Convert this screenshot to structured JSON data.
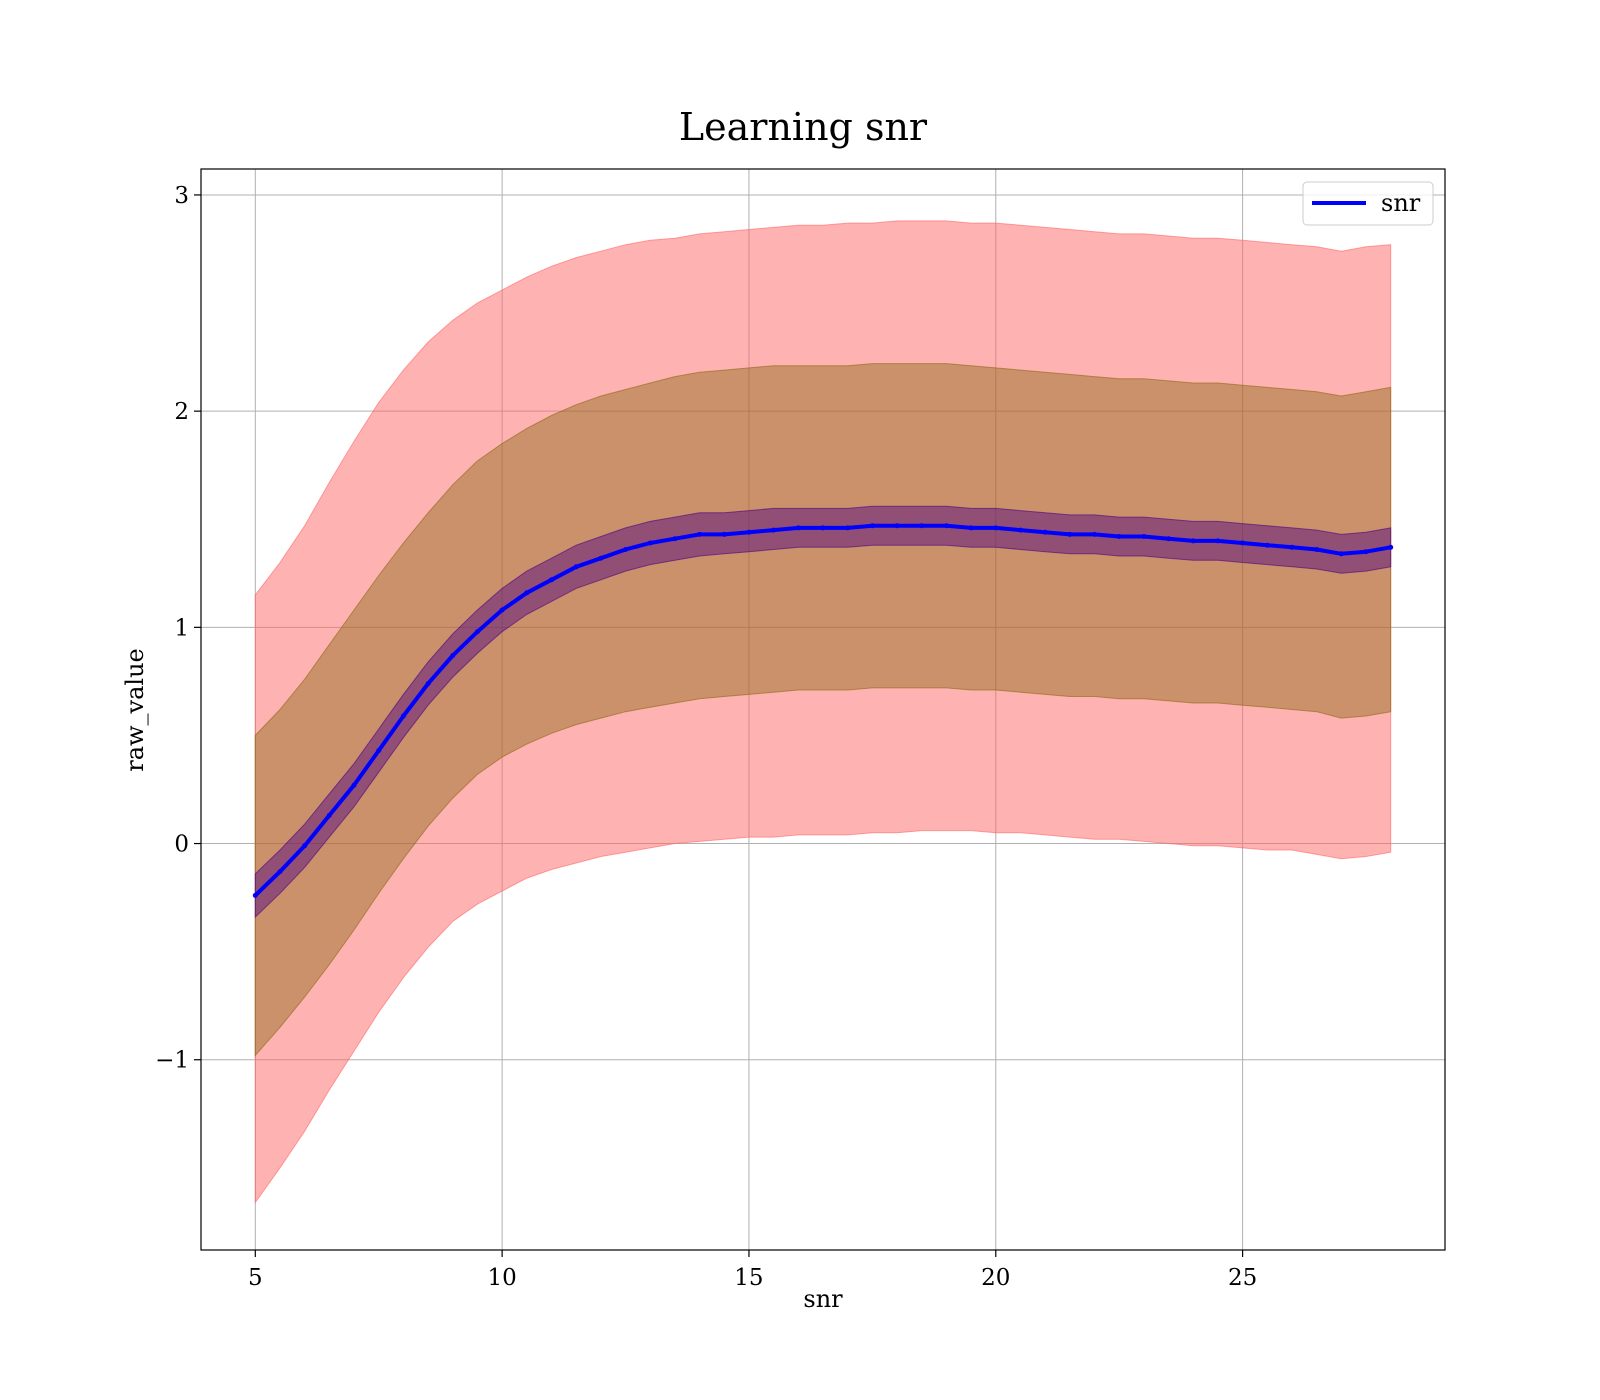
{
  "chart_data": {
    "type": "line",
    "title": "Learning snr",
    "xlabel": "snr",
    "ylabel": "raw_value",
    "xlim": [
      3.9,
      29.1
    ],
    "ylim": [
      -1.88,
      3.12
    ],
    "xticks": [
      5,
      10,
      15,
      20,
      25
    ],
    "yticks": [
      -1,
      0,
      1,
      2,
      3
    ],
    "ytick_labels": [
      "−1",
      "0",
      "1",
      "2",
      "3"
    ],
    "grid": true,
    "legend": {
      "position": "top-right",
      "entries": [
        "snr"
      ]
    },
    "x": [
      5,
      5.5,
      6,
      6.5,
      7,
      7.5,
      8,
      8.5,
      9,
      9.5,
      10,
      10.5,
      11,
      11.5,
      12,
      12.5,
      13,
      13.5,
      14,
      14.5,
      15,
      15.5,
      16,
      16.5,
      17,
      17.5,
      18,
      18.5,
      19,
      19.5,
      20,
      20.5,
      21,
      21.5,
      22,
      22.5,
      23,
      23.5,
      24,
      24.5,
      25,
      25.5,
      26,
      26.5,
      27,
      27.5,
      28
    ],
    "series": [
      {
        "name": "snr",
        "color": "#0000ff",
        "values": [
          -0.24,
          -0.13,
          -0.01,
          0.13,
          0.27,
          0.43,
          0.59,
          0.74,
          0.87,
          0.98,
          1.08,
          1.16,
          1.22,
          1.28,
          1.32,
          1.36,
          1.39,
          1.41,
          1.43,
          1.43,
          1.44,
          1.45,
          1.46,
          1.46,
          1.46,
          1.47,
          1.47,
          1.47,
          1.47,
          1.46,
          1.46,
          1.45,
          1.44,
          1.43,
          1.43,
          1.42,
          1.42,
          1.41,
          1.4,
          1.4,
          1.39,
          1.38,
          1.37,
          1.36,
          1.34,
          1.35,
          1.37
        ],
        "inner_band": {
          "color": "#4b0082",
          "lower": [
            -0.34,
            -0.23,
            -0.11,
            0.03,
            0.17,
            0.33,
            0.49,
            0.64,
            0.77,
            0.88,
            0.98,
            1.06,
            1.12,
            1.18,
            1.22,
            1.26,
            1.29,
            1.31,
            1.33,
            1.34,
            1.35,
            1.36,
            1.37,
            1.37,
            1.37,
            1.38,
            1.38,
            1.38,
            1.38,
            1.37,
            1.37,
            1.36,
            1.35,
            1.34,
            1.34,
            1.33,
            1.33,
            1.32,
            1.31,
            1.31,
            1.3,
            1.29,
            1.28,
            1.27,
            1.25,
            1.26,
            1.28
          ],
          "upper": [
            -0.14,
            -0.03,
            0.09,
            0.23,
            0.37,
            0.53,
            0.69,
            0.84,
            0.97,
            1.08,
            1.18,
            1.26,
            1.32,
            1.38,
            1.42,
            1.46,
            1.49,
            1.51,
            1.53,
            1.53,
            1.54,
            1.55,
            1.55,
            1.55,
            1.55,
            1.56,
            1.56,
            1.56,
            1.56,
            1.55,
            1.55,
            1.54,
            1.53,
            1.52,
            1.52,
            1.51,
            1.51,
            1.5,
            1.49,
            1.49,
            1.48,
            1.47,
            1.46,
            1.45,
            1.43,
            1.44,
            1.46
          ]
        },
        "middle_band": {
          "color": "#8b6914",
          "lower": [
            -0.98,
            -0.85,
            -0.71,
            -0.56,
            -0.4,
            -0.23,
            -0.07,
            0.08,
            0.21,
            0.32,
            0.4,
            0.46,
            0.51,
            0.55,
            0.58,
            0.61,
            0.63,
            0.65,
            0.67,
            0.68,
            0.69,
            0.7,
            0.71,
            0.71,
            0.71,
            0.72,
            0.72,
            0.72,
            0.72,
            0.71,
            0.71,
            0.7,
            0.69,
            0.68,
            0.68,
            0.67,
            0.67,
            0.66,
            0.65,
            0.65,
            0.64,
            0.63,
            0.62,
            0.61,
            0.58,
            0.59,
            0.61
          ],
          "upper": [
            0.5,
            0.62,
            0.76,
            0.92,
            1.08,
            1.24,
            1.39,
            1.53,
            1.66,
            1.77,
            1.85,
            1.92,
            1.98,
            2.03,
            2.07,
            2.1,
            2.13,
            2.16,
            2.18,
            2.19,
            2.2,
            2.21,
            2.21,
            2.21,
            2.21,
            2.22,
            2.22,
            2.22,
            2.22,
            2.21,
            2.2,
            2.19,
            2.18,
            2.17,
            2.16,
            2.15,
            2.15,
            2.14,
            2.13,
            2.13,
            2.12,
            2.11,
            2.1,
            2.09,
            2.07,
            2.09,
            2.11
          ]
        },
        "outer_band": {
          "color": "#ff6666",
          "lower": [
            -1.66,
            -1.5,
            -1.33,
            -1.14,
            -0.96,
            -0.78,
            -0.62,
            -0.48,
            -0.36,
            -0.28,
            -0.22,
            -0.16,
            -0.12,
            -0.09,
            -0.06,
            -0.04,
            -0.02,
            0.0,
            0.01,
            0.02,
            0.03,
            0.03,
            0.04,
            0.04,
            0.04,
            0.05,
            0.05,
            0.06,
            0.06,
            0.06,
            0.05,
            0.05,
            0.04,
            0.03,
            0.02,
            0.02,
            0.01,
            0.0,
            -0.01,
            -0.01,
            -0.02,
            -0.03,
            -0.03,
            -0.05,
            -0.07,
            -0.06,
            -0.04
          ],
          "upper": [
            1.15,
            1.3,
            1.47,
            1.67,
            1.86,
            2.04,
            2.19,
            2.32,
            2.42,
            2.5,
            2.56,
            2.62,
            2.67,
            2.71,
            2.74,
            2.77,
            2.79,
            2.8,
            2.82,
            2.83,
            2.84,
            2.85,
            2.86,
            2.86,
            2.87,
            2.87,
            2.88,
            2.88,
            2.88,
            2.87,
            2.87,
            2.86,
            2.85,
            2.84,
            2.83,
            2.82,
            2.82,
            2.81,
            2.8,
            2.8,
            2.79,
            2.78,
            2.77,
            2.76,
            2.74,
            2.76,
            2.77
          ]
        }
      }
    ]
  }
}
